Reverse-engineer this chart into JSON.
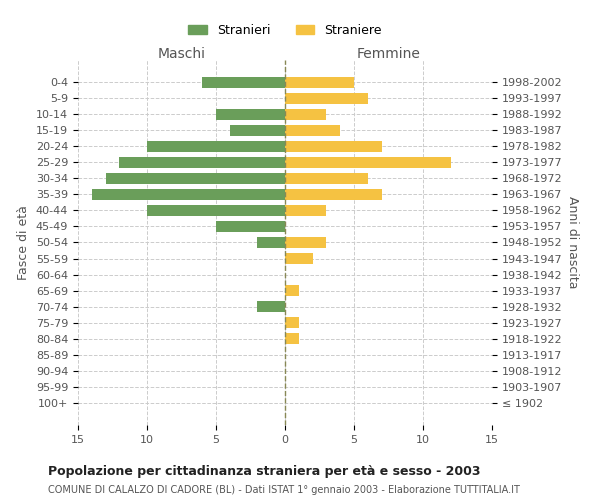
{
  "age_groups": [
    "100+",
    "95-99",
    "90-94",
    "85-89",
    "80-84",
    "75-79",
    "70-74",
    "65-69",
    "60-64",
    "55-59",
    "50-54",
    "45-49",
    "40-44",
    "35-39",
    "30-34",
    "25-29",
    "20-24",
    "15-19",
    "10-14",
    "5-9",
    "0-4"
  ],
  "birth_years": [
    "≤ 1902",
    "1903-1907",
    "1908-1912",
    "1913-1917",
    "1918-1922",
    "1923-1927",
    "1928-1932",
    "1933-1937",
    "1938-1942",
    "1943-1947",
    "1948-1952",
    "1953-1957",
    "1958-1962",
    "1963-1967",
    "1968-1972",
    "1973-1977",
    "1978-1982",
    "1983-1987",
    "1988-1992",
    "1993-1997",
    "1998-2002"
  ],
  "maschi": [
    0,
    0,
    0,
    0,
    0,
    0,
    2,
    0,
    0,
    0,
    2,
    5,
    10,
    14,
    13,
    12,
    10,
    4,
    5,
    0,
    6
  ],
  "femmine": [
    0,
    0,
    0,
    0,
    1,
    1,
    0,
    1,
    0,
    2,
    3,
    0,
    3,
    7,
    6,
    12,
    7,
    4,
    3,
    6,
    5
  ],
  "male_color": "#6a9e5a",
  "female_color": "#f5c242",
  "title": "Popolazione per cittadinanza straniera per età e sesso - 2003",
  "subtitle": "COMUNE DI CALALZO DI CADORE (BL) - Dati ISTAT 1° gennaio 2003 - Elaborazione TUTTITALIA.IT",
  "xlabel_left": "Maschi",
  "xlabel_right": "Femmine",
  "ylabel_left": "Fasce di età",
  "ylabel_right": "Anni di nascita",
  "legend_stranieri": "Stranieri",
  "legend_straniere": "Straniere",
  "xlim": 15,
  "background_color": "#ffffff",
  "grid_color": "#cccccc"
}
